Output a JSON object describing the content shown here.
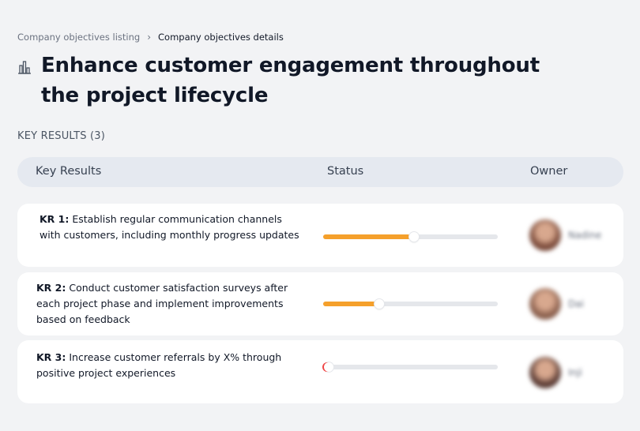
{
  "breadcrumb": {
    "parent": "Company objectives listing",
    "separator": "›",
    "current": "Company objectives details"
  },
  "objective": {
    "icon": "building-chart-icon",
    "title": "Enhance customer engagement throughout the project lifecycle"
  },
  "key_results_section": {
    "label": "KEY RESULTS (3)"
  },
  "table": {
    "columns": [
      "Key Results",
      "Status",
      "Owner"
    ]
  },
  "key_results": [
    {
      "id": "KR 1:",
      "text": "Establish regular communication channels with customers, including monthly progress updates",
      "progress": 0.52,
      "owner": "Nadine",
      "avatar_color": "#7a4a3a"
    },
    {
      "id": "KR 2:",
      "text": "Conduct customer satisfaction surveys after each project phase and implement improvements based on feedback",
      "progress": 0.32,
      "owner": "Dai",
      "avatar_color": "#8a5f4d"
    },
    {
      "id": "KR 3:",
      "text": "Increase customer referrals by X% through positive project experiences",
      "progress": 0.03,
      "owner": "Inji",
      "avatar_color": "#5a3b34"
    }
  ],
  "colors": {
    "progress_fill": "#f5a02b",
    "progress_low": "#ef4444",
    "background": "#f2f3f5",
    "header_bg": "#e5e9f0"
  }
}
